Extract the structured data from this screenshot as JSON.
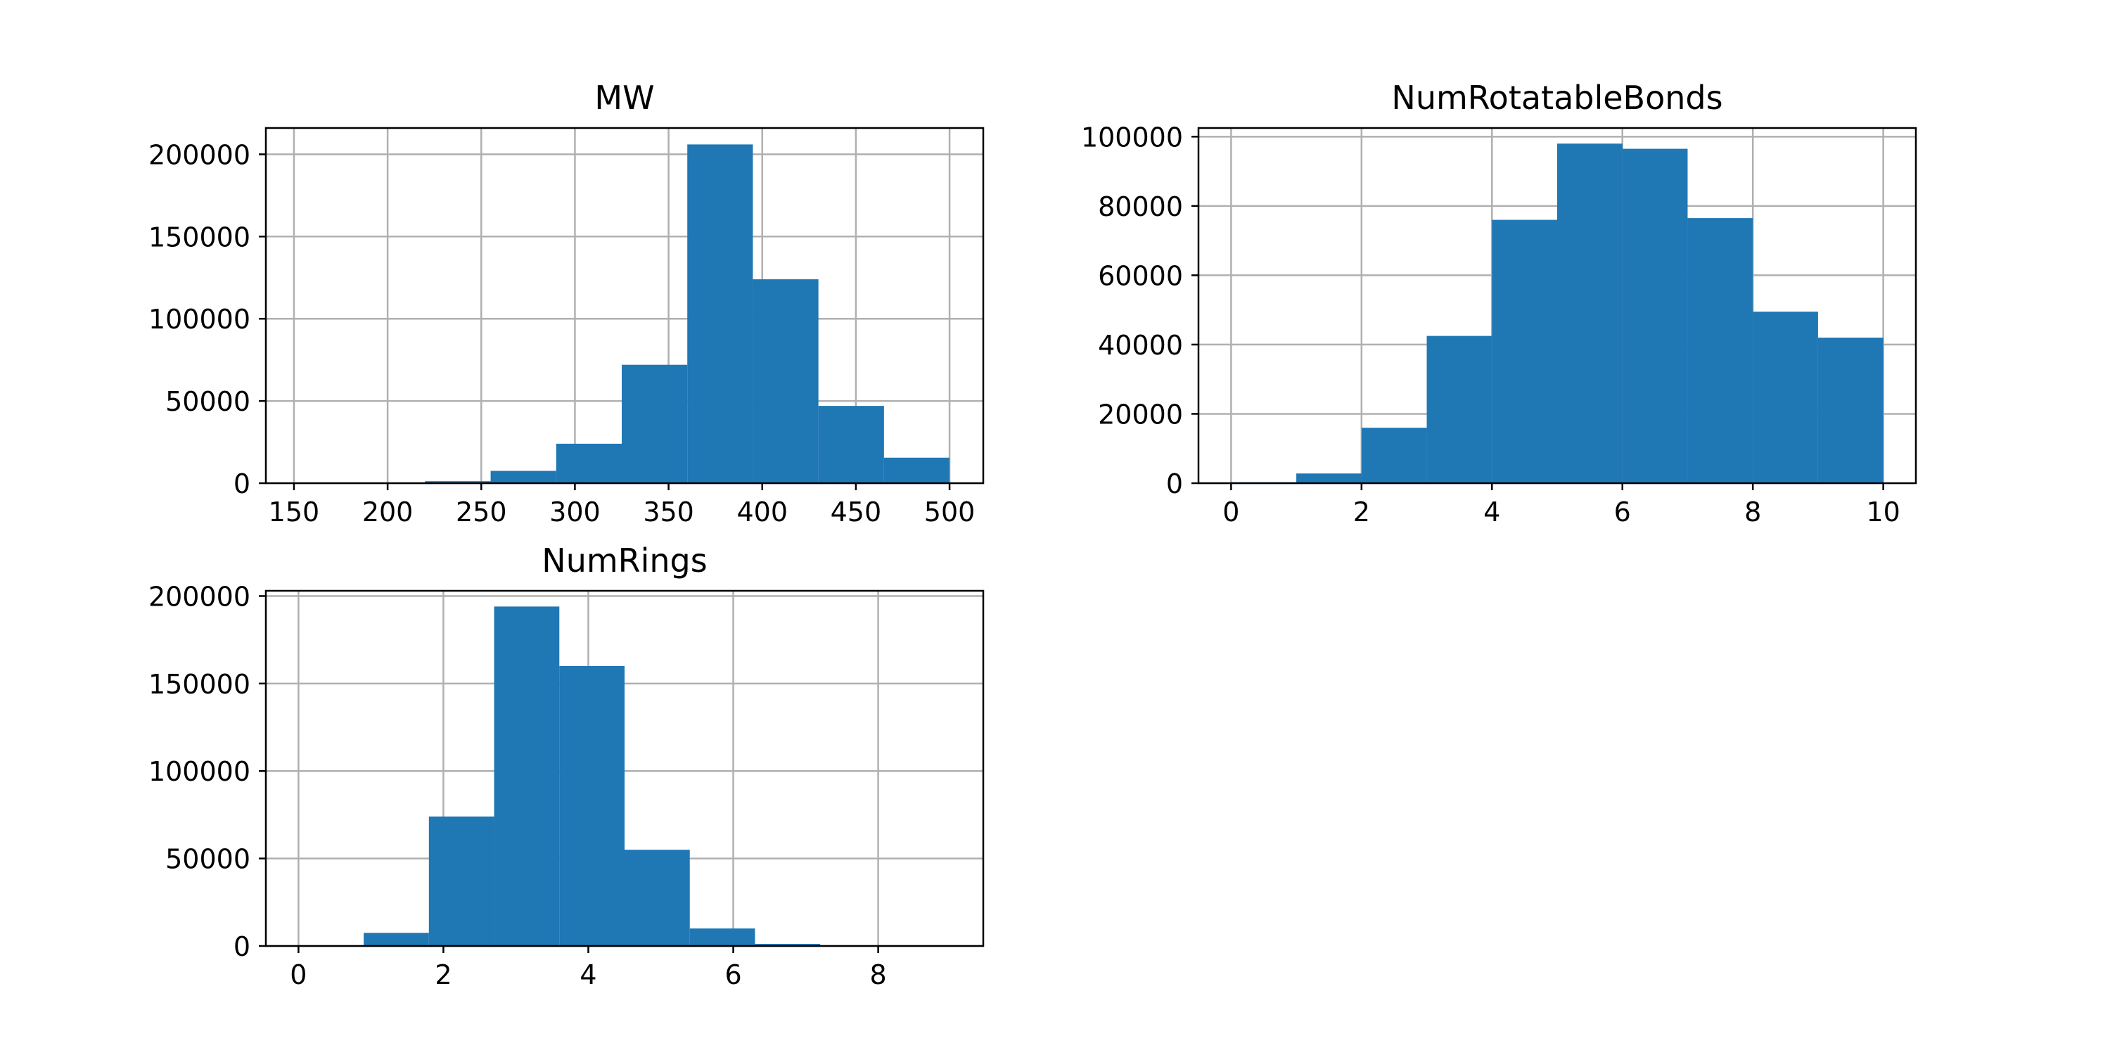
{
  "chart_data": [
    {
      "type": "bar",
      "title": "MW",
      "xlabel": "",
      "ylabel": "",
      "xlim": [
        135,
        518
      ],
      "ylim": [
        0,
        216000
      ],
      "xticks": [
        "150",
        "200",
        "250",
        "300",
        "350",
        "400",
        "450",
        "500"
      ],
      "yticks": [
        "0",
        "50000",
        "100000",
        "150000",
        "200000"
      ],
      "grid": true,
      "color": "#1f77b4",
      "bins": [
        {
          "x0": 150.0,
          "x1": 185.0,
          "value": 0
        },
        {
          "x0": 185.0,
          "x1": 220.0,
          "value": 100
        },
        {
          "x0": 220.0,
          "x1": 255.0,
          "value": 1200
        },
        {
          "x0": 255.0,
          "x1": 290.0,
          "value": 7500
        },
        {
          "x0": 290.0,
          "x1": 325.0,
          "value": 24000
        },
        {
          "x0": 325.0,
          "x1": 360.0,
          "value": 72000
        },
        {
          "x0": 360.0,
          "x1": 395.0,
          "value": 206000
        },
        {
          "x0": 395.0,
          "x1": 430.0,
          "value": 124000
        },
        {
          "x0": 430.0,
          "x1": 465.0,
          "value": 47000
        },
        {
          "x0": 465.0,
          "x1": 500.0,
          "value": 15500
        }
      ]
    },
    {
      "type": "bar",
      "title": "NumRotatableBonds",
      "xlabel": "",
      "ylabel": "",
      "xlim": [
        -0.5,
        10.5
      ],
      "ylim": [
        0,
        102500
      ],
      "xticks": [
        "0",
        "2",
        "4",
        "6",
        "8",
        "10"
      ],
      "yticks": [
        "0",
        "20000",
        "40000",
        "60000",
        "80000",
        "100000"
      ],
      "grid": true,
      "color": "#1f77b4",
      "bins": [
        {
          "x0": 0,
          "x1": 1,
          "value": 300
        },
        {
          "x0": 1,
          "x1": 2,
          "value": 2800
        },
        {
          "x0": 2,
          "x1": 3,
          "value": 16000
        },
        {
          "x0": 3,
          "x1": 4,
          "value": 42500
        },
        {
          "x0": 4,
          "x1": 5,
          "value": 76000
        },
        {
          "x0": 5,
          "x1": 6,
          "value": 98000
        },
        {
          "x0": 6,
          "x1": 7,
          "value": 96500
        },
        {
          "x0": 7,
          "x1": 8,
          "value": 76500
        },
        {
          "x0": 8,
          "x1": 9,
          "value": 49500
        },
        {
          "x0": 9,
          "x1": 10,
          "value": 42000
        }
      ]
    },
    {
      "type": "bar",
      "title": "NumRings",
      "xlabel": "",
      "ylabel": "",
      "xlim": [
        -0.45,
        9.45
      ],
      "ylim": [
        0,
        203000
      ],
      "xticks": [
        "0",
        "2",
        "4",
        "6",
        "8"
      ],
      "yticks": [
        "0",
        "50000",
        "100000",
        "150000",
        "200000"
      ],
      "grid": true,
      "color": "#1f77b4",
      "bins": [
        {
          "x0": 0.0,
          "x1": 0.9,
          "value": 300
        },
        {
          "x0": 0.9,
          "x1": 1.8,
          "value": 7500
        },
        {
          "x0": 1.8,
          "x1": 2.7,
          "value": 74000
        },
        {
          "x0": 2.7,
          "x1": 3.6,
          "value": 194000
        },
        {
          "x0": 3.6,
          "x1": 4.5,
          "value": 160000
        },
        {
          "x0": 4.5,
          "x1": 5.4,
          "value": 55000
        },
        {
          "x0": 5.4,
          "x1": 6.3,
          "value": 10000
        },
        {
          "x0": 6.3,
          "x1": 7.2,
          "value": 1200
        },
        {
          "x0": 7.2,
          "x1": 8.1,
          "value": 300
        },
        {
          "x0": 8.1,
          "x1": 9.0,
          "value": 100
        }
      ]
    }
  ]
}
